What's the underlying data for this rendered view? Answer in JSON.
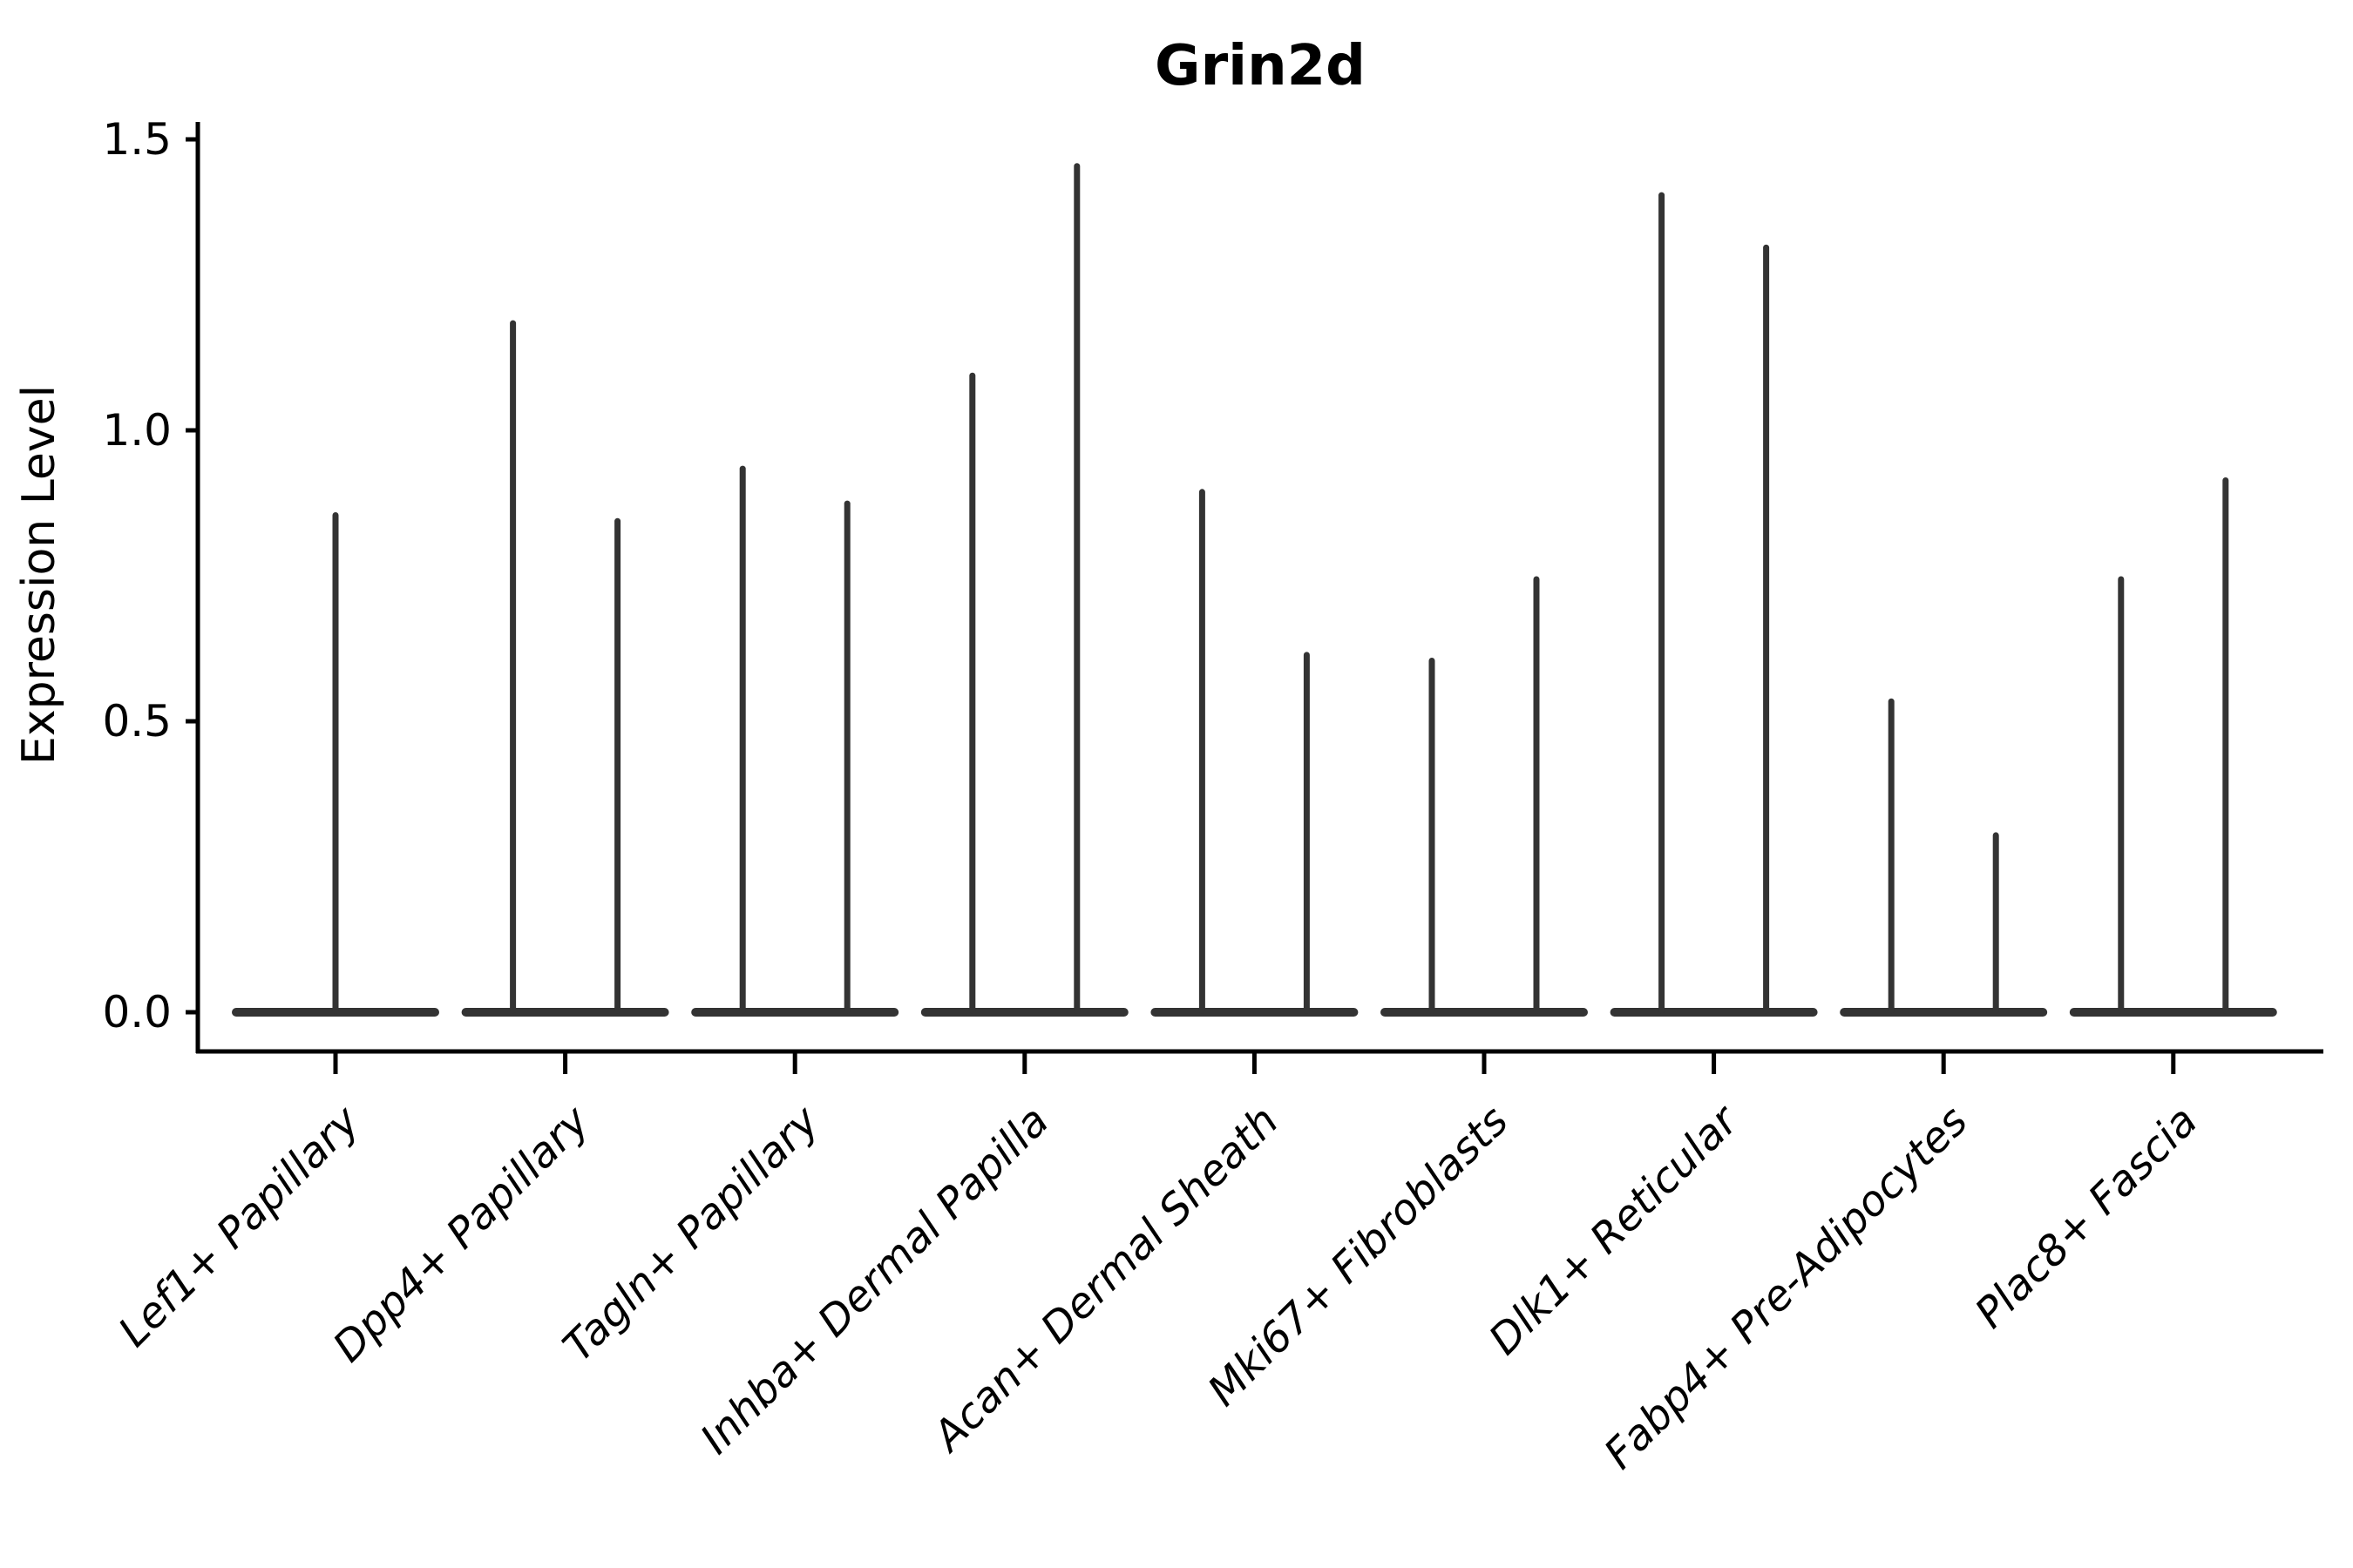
{
  "title": "Grin2d",
  "y_axis": {
    "label": "Expression Level",
    "tick_labels": [
      "0.0",
      "0.5",
      "1.0",
      "1.5"
    ],
    "tick_values": [
      0,
      0.5,
      1.0,
      1.5
    ]
  },
  "chart_data": {
    "type": "violin",
    "title": "Grin2d",
    "xlabel": "",
    "ylabel": "Expression Level",
    "ylim": [
      0,
      1.5
    ],
    "yticks": [
      0.0,
      0.5,
      1.0,
      1.5
    ],
    "grid": false,
    "legend": false,
    "style": "needle-thin violins: wide flat base at 0 expression with thin spike to max; dark gray on white",
    "categories": [
      "Lef1+ Papillary",
      "Dpp4+ Papillary",
      "Tagln+ Papillary",
      "Inhba+ Dermal Papilla",
      "Acan+ Dermal Sheath",
      "Mki67+ Fibroblasts",
      "Dlk1+ Reticular",
      "Fabp4+ Pre-Adipocytes",
      "Plac8+ Fascia"
    ],
    "violin_maxima": [
      [
        0.86
      ],
      [
        1.19,
        0.85
      ],
      [
        0.94,
        0.88
      ],
      [
        1.1,
        1.46
      ],
      [
        0.9,
        0.62
      ],
      [
        0.61,
        0.75
      ],
      [
        1.41,
        1.32
      ],
      [
        0.54,
        0.31
      ],
      [
        0.75,
        0.92
      ]
    ],
    "colors": {
      "violin": "#333333",
      "axis": "#000000",
      "text": "#000000"
    }
  }
}
